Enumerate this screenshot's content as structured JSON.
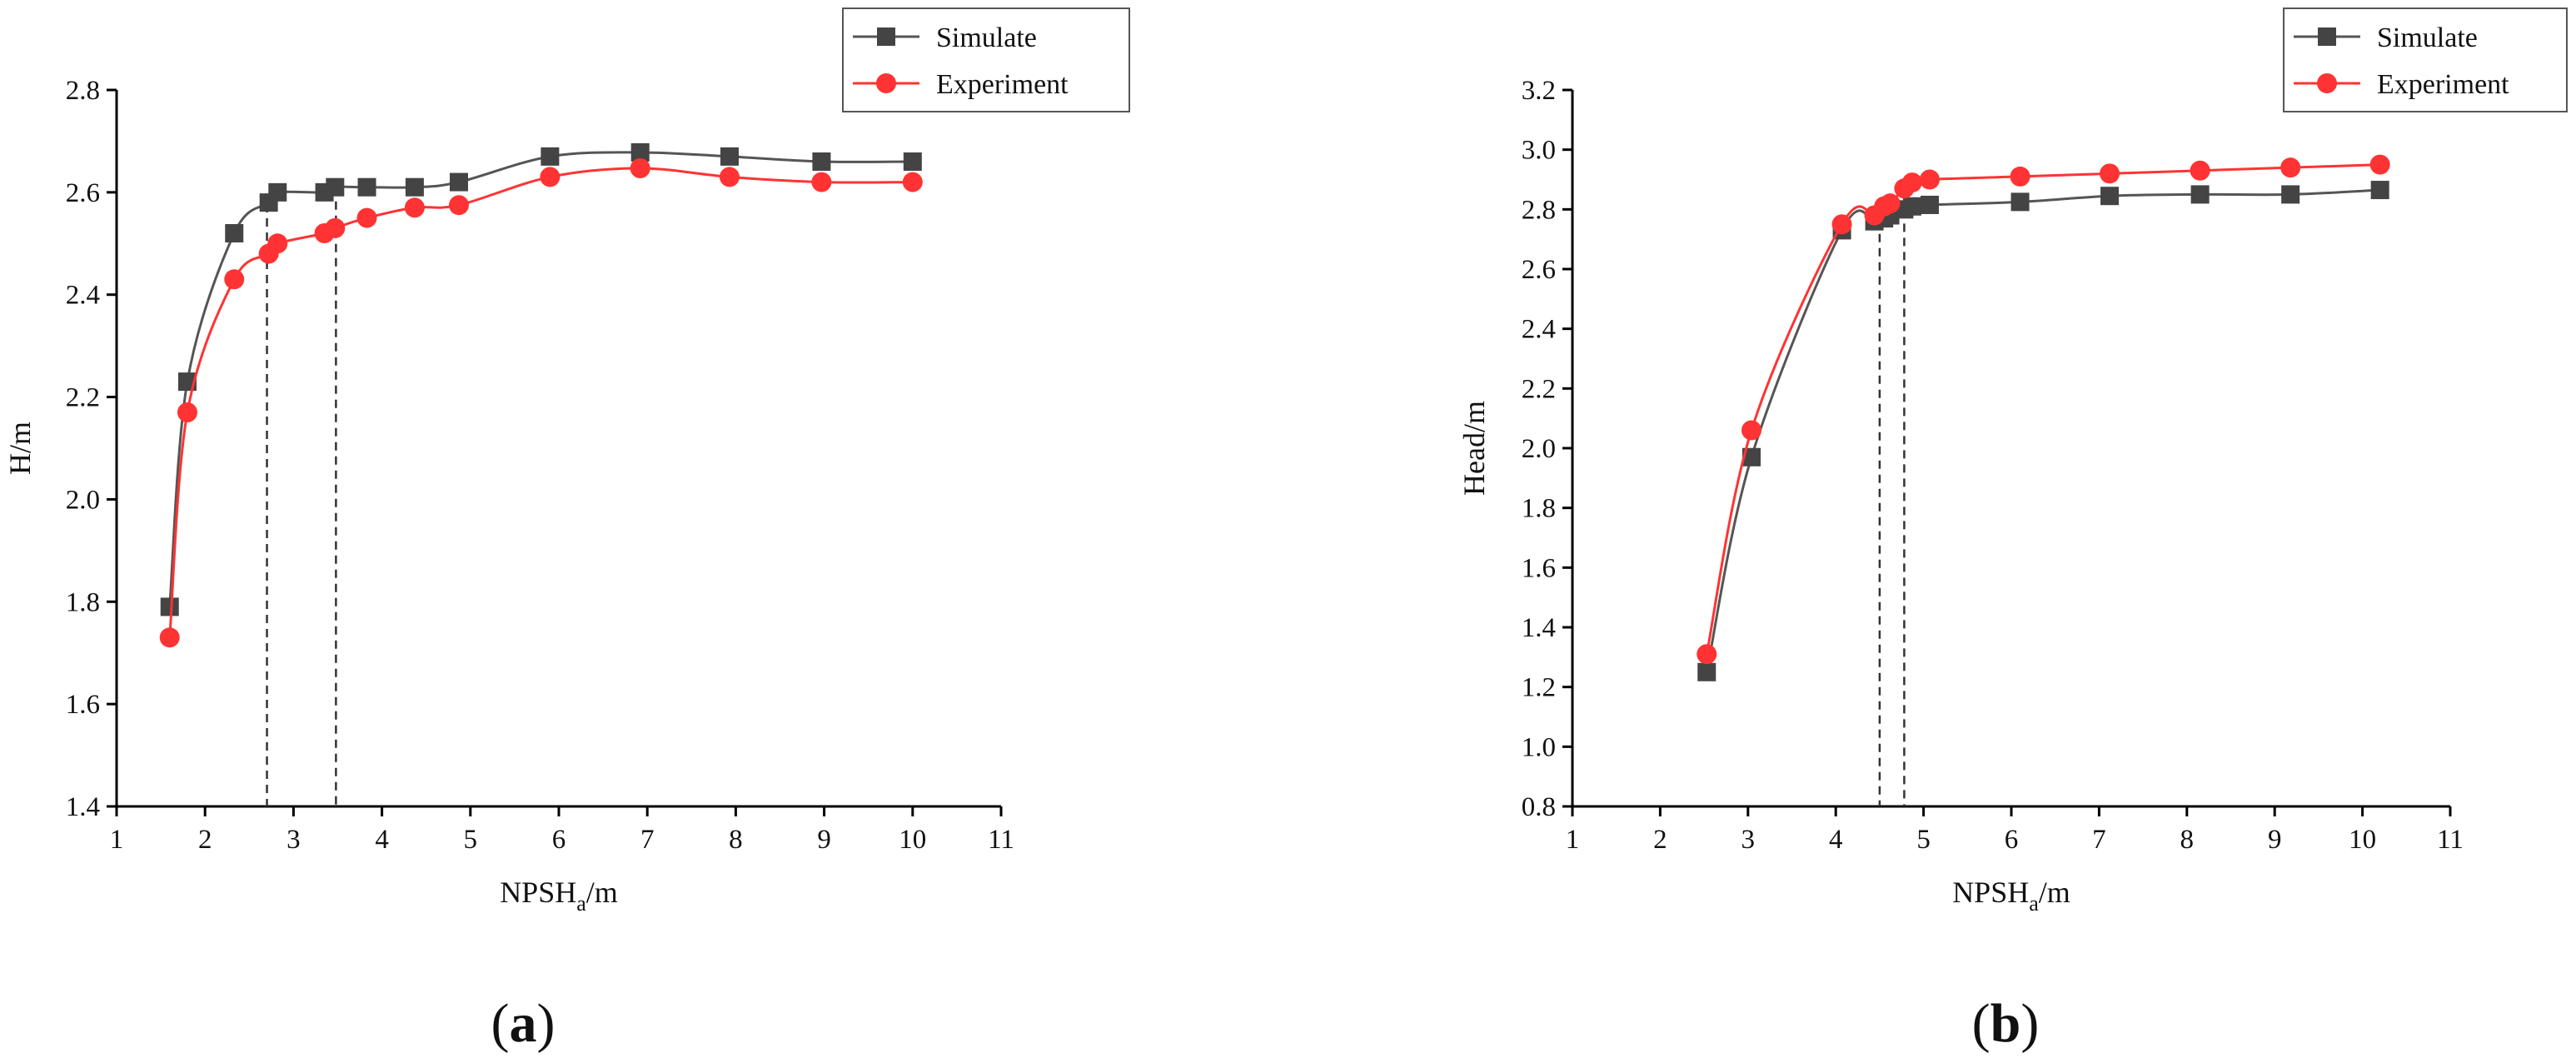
{
  "chart_data": [
    {
      "type": "line",
      "panel_label": "a",
      "xlabel": "NPSH",
      "xlabel_sub": "a",
      "xlabel_suffix": "/m",
      "ylabel": "H/m",
      "xlim": [
        1,
        11
      ],
      "ylim": [
        1.4,
        2.8
      ],
      "xticks": [
        1,
        2,
        3,
        4,
        5,
        6,
        7,
        8,
        9,
        10,
        11
      ],
      "yticks": [
        1.4,
        1.6,
        1.8,
        2.0,
        2.2,
        2.4,
        2.6,
        2.8
      ],
      "legend_position": "top-right",
      "guide_lines_x": [
        2.7,
        3.48
      ],
      "series": [
        {
          "name": "Simulate",
          "marker": "square",
          "color": "#555555",
          "x": [
            1.6,
            1.8,
            2.33,
            2.72,
            2.82,
            3.35,
            3.47,
            3.83,
            4.37,
            4.87,
            5.9,
            6.92,
            7.93,
            8.97,
            10.0
          ],
          "y": [
            1.79,
            2.23,
            2.52,
            2.58,
            2.6,
            2.6,
            2.61,
            2.61,
            2.61,
            2.62,
            2.67,
            2.678,
            2.67,
            2.66,
            2.66
          ]
        },
        {
          "name": "Experiment",
          "marker": "circle",
          "color": "#ff3333",
          "x": [
            1.6,
            1.8,
            2.33,
            2.72,
            2.82,
            3.35,
            3.47,
            3.83,
            4.37,
            4.87,
            5.9,
            6.92,
            7.93,
            8.97,
            10.0
          ],
          "y": [
            1.73,
            2.17,
            2.43,
            2.48,
            2.5,
            2.52,
            2.53,
            2.55,
            2.57,
            2.575,
            2.63,
            2.647,
            2.63,
            2.62,
            2.62
          ]
        }
      ]
    },
    {
      "type": "line",
      "panel_label": "b",
      "xlabel": "NPSH",
      "xlabel_sub": "a",
      "xlabel_suffix": "/m",
      "ylabel": "Head/m",
      "xlim": [
        1,
        11
      ],
      "ylim": [
        0.8,
        3.2
      ],
      "xticks": [
        1,
        2,
        3,
        4,
        5,
        6,
        7,
        8,
        9,
        10,
        11
      ],
      "yticks": [
        0.8,
        1.0,
        1.2,
        1.4,
        1.6,
        1.8,
        2.0,
        2.2,
        2.4,
        2.6,
        2.8,
        3.0,
        3.2
      ],
      "legend_position": "top-right",
      "guide_lines_x": [
        4.5,
        4.78
      ],
      "series": [
        {
          "name": "Simulate",
          "marker": "square",
          "color": "#555555",
          "x": [
            2.53,
            3.04,
            4.07,
            4.44,
            4.55,
            4.62,
            4.78,
            4.87,
            5.07,
            6.1,
            7.12,
            8.15,
            9.18,
            10.2
          ],
          "y": [
            1.25,
            1.97,
            2.73,
            2.76,
            2.77,
            2.78,
            2.8,
            2.81,
            2.815,
            2.825,
            2.845,
            2.85,
            2.85,
            2.865
          ]
        },
        {
          "name": "Experiment",
          "marker": "circle",
          "color": "#ff3333",
          "x": [
            2.53,
            3.04,
            4.07,
            4.44,
            4.55,
            4.62,
            4.78,
            4.87,
            5.07,
            6.1,
            7.12,
            8.15,
            9.18,
            10.2
          ],
          "y": [
            1.31,
            2.06,
            2.75,
            2.78,
            2.81,
            2.82,
            2.87,
            2.89,
            2.9,
            2.91,
            2.92,
            2.93,
            2.94,
            2.95
          ]
        }
      ]
    }
  ]
}
